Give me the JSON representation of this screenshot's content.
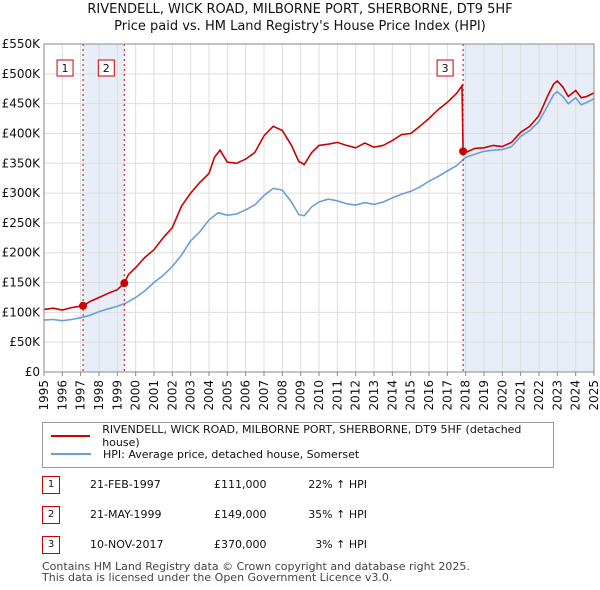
{
  "title_line1": "RIVENDELL, WICK ROAD, MILBORNE PORT, SHERBORNE, DT9 5HF",
  "title_line2": "Price paid vs. HM Land Registry's House Price Index (HPI)",
  "colors": {
    "property": "#cc0000",
    "hpi": "#6a9ed8",
    "shade": "#e8eef8",
    "grid": "#dddddd"
  },
  "chart_data": {
    "type": "line",
    "title": "Price paid vs. HM Land Registry's House Price Index (HPI)",
    "xlabel": "",
    "ylabel": "",
    "xlim": [
      1995,
      2025
    ],
    "ylim": [
      0,
      550000
    ],
    "y_ticks": [
      {
        "value": 0,
        "label": "£0"
      },
      {
        "value": 50000,
        "label": "£50K"
      },
      {
        "value": 100000,
        "label": "£100K"
      },
      {
        "value": 150000,
        "label": "£150K"
      },
      {
        "value": 200000,
        "label": "£200K"
      },
      {
        "value": 250000,
        "label": "£250K"
      },
      {
        "value": 300000,
        "label": "£300K"
      },
      {
        "value": 350000,
        "label": "£350K"
      },
      {
        "value": 400000,
        "label": "£400K"
      },
      {
        "value": 450000,
        "label": "£450K"
      },
      {
        "value": 500000,
        "label": "£500K"
      },
      {
        "value": 550000,
        "label": "£550K"
      }
    ],
    "x_ticks": [
      "1995",
      "1996",
      "1997",
      "1998",
      "1999",
      "2000",
      "2001",
      "2002",
      "2003",
      "2004",
      "2005",
      "2006",
      "2007",
      "2008",
      "2009",
      "2010",
      "2011",
      "2012",
      "2013",
      "2014",
      "2015",
      "2016",
      "2017",
      "2018",
      "2019",
      "2020",
      "2021",
      "2022",
      "2023",
      "2024",
      "2025"
    ],
    "shaded_ranges": [
      [
        1997.13,
        1999.38
      ],
      [
        2017.86,
        2025.0
      ]
    ],
    "series": [
      {
        "name": "RIVENDELL, WICK ROAD, MILBORNE PORT, SHERBORNE, DT9 5HF (detached house)",
        "x": [
          1995.0,
          1995.5,
          1996.0,
          1996.5,
          1997.13,
          1997.5,
          1998.0,
          1998.5,
          1999.0,
          1999.38,
          1999.6,
          2000.0,
          2000.5,
          2001.0,
          2001.5,
          2002.0,
          2002.5,
          2003.0,
          2003.5,
          2004.0,
          2004.3,
          2004.6,
          2005.0,
          2005.5,
          2006.0,
          2006.5,
          2007.0,
          2007.5,
          2008.0,
          2008.5,
          2008.9,
          2009.2,
          2009.6,
          2010.0,
          2010.5,
          2011.0,
          2011.5,
          2012.0,
          2012.5,
          2013.0,
          2013.5,
          2014.0,
          2014.5,
          2015.0,
          2015.5,
          2016.0,
          2016.5,
          2017.0,
          2017.5,
          2017.8,
          2017.86,
          2018.0,
          2018.5,
          2019.0,
          2019.5,
          2020.0,
          2020.5,
          2021.0,
          2021.5,
          2022.0,
          2022.5,
          2022.8,
          2023.0,
          2023.3,
          2023.6,
          2024.0,
          2024.3,
          2024.6,
          2025.0
        ],
        "values": [
          105000,
          107000,
          104000,
          108000,
          111000,
          118000,
          125000,
          132000,
          138000,
          149000,
          163000,
          175000,
          192000,
          205000,
          225000,
          242000,
          278000,
          300000,
          318000,
          333000,
          360000,
          372000,
          352000,
          350000,
          357000,
          368000,
          396000,
          412000,
          405000,
          380000,
          353000,
          348000,
          368000,
          380000,
          382000,
          385000,
          380000,
          376000,
          384000,
          377000,
          380000,
          388000,
          398000,
          400000,
          412000,
          425000,
          440000,
          452000,
          467000,
          480000,
          370000,
          368000,
          375000,
          376000,
          380000,
          378000,
          385000,
          402000,
          412000,
          430000,
          465000,
          483000,
          488000,
          478000,
          462000,
          472000,
          460000,
          462000,
          468000
        ]
      },
      {
        "name": "HPI: Average price, detached house, Somerset",
        "x": [
          1995.0,
          1995.5,
          1996.0,
          1996.5,
          1997.0,
          1997.5,
          1998.0,
          1998.5,
          1999.0,
          1999.5,
          2000.0,
          2000.5,
          2001.0,
          2001.5,
          2002.0,
          2002.5,
          2003.0,
          2003.5,
          2004.0,
          2004.5,
          2005.0,
          2005.5,
          2006.0,
          2006.5,
          2007.0,
          2007.5,
          2008.0,
          2008.5,
          2008.9,
          2009.2,
          2009.6,
          2010.0,
          2010.5,
          2011.0,
          2011.5,
          2012.0,
          2012.5,
          2013.0,
          2013.5,
          2014.0,
          2014.5,
          2015.0,
          2015.5,
          2016.0,
          2016.5,
          2017.0,
          2017.5,
          2018.0,
          2018.5,
          2019.0,
          2019.5,
          2020.0,
          2020.5,
          2021.0,
          2021.5,
          2022.0,
          2022.5,
          2022.8,
          2023.0,
          2023.3,
          2023.6,
          2024.0,
          2024.3,
          2024.6,
          2025.0
        ],
        "values": [
          87000,
          88000,
          86000,
          88000,
          91000,
          95000,
          101000,
          106000,
          110000,
          116000,
          125000,
          136000,
          150000,
          162000,
          177000,
          196000,
          220000,
          235000,
          255000,
          267000,
          263000,
          265000,
          272000,
          280000,
          296000,
          308000,
          305000,
          285000,
          264000,
          262000,
          277000,
          285000,
          290000,
          287000,
          282000,
          280000,
          284000,
          281000,
          285000,
          292000,
          298000,
          303000,
          310000,
          320000,
          328000,
          337000,
          346000,
          360000,
          365000,
          370000,
          372000,
          373000,
          378000,
          395000,
          405000,
          420000,
          448000,
          465000,
          470000,
          462000,
          450000,
          460000,
          448000,
          452000,
          458000
        ]
      }
    ],
    "sales": [
      {
        "label": "1",
        "x": 1997.13,
        "value": 111000
      },
      {
        "label": "2",
        "x": 1999.38,
        "value": 149000
      },
      {
        "label": "3",
        "x": 2017.86,
        "value": 370000
      }
    ]
  },
  "legend": {
    "property": "RIVENDELL, WICK ROAD, MILBORNE PORT, SHERBORNE, DT9 5HF (detached house)",
    "hpi": "HPI: Average price, detached house, Somerset"
  },
  "sales_table": [
    {
      "num": "1",
      "date": "21-FEB-1997",
      "price": "£111,000",
      "pct": "22% ↑ HPI"
    },
    {
      "num": "2",
      "date": "21-MAY-1999",
      "price": "£149,000",
      "pct": "35% ↑ HPI"
    },
    {
      "num": "3",
      "date": "10-NOV-2017",
      "price": "£370,000",
      "pct": "3% ↑ HPI"
    }
  ],
  "footer_line1": "Contains HM Land Registry data © Crown copyright and database right 2025.",
  "footer_line2": "This data is licensed under the Open Government Licence v3.0."
}
